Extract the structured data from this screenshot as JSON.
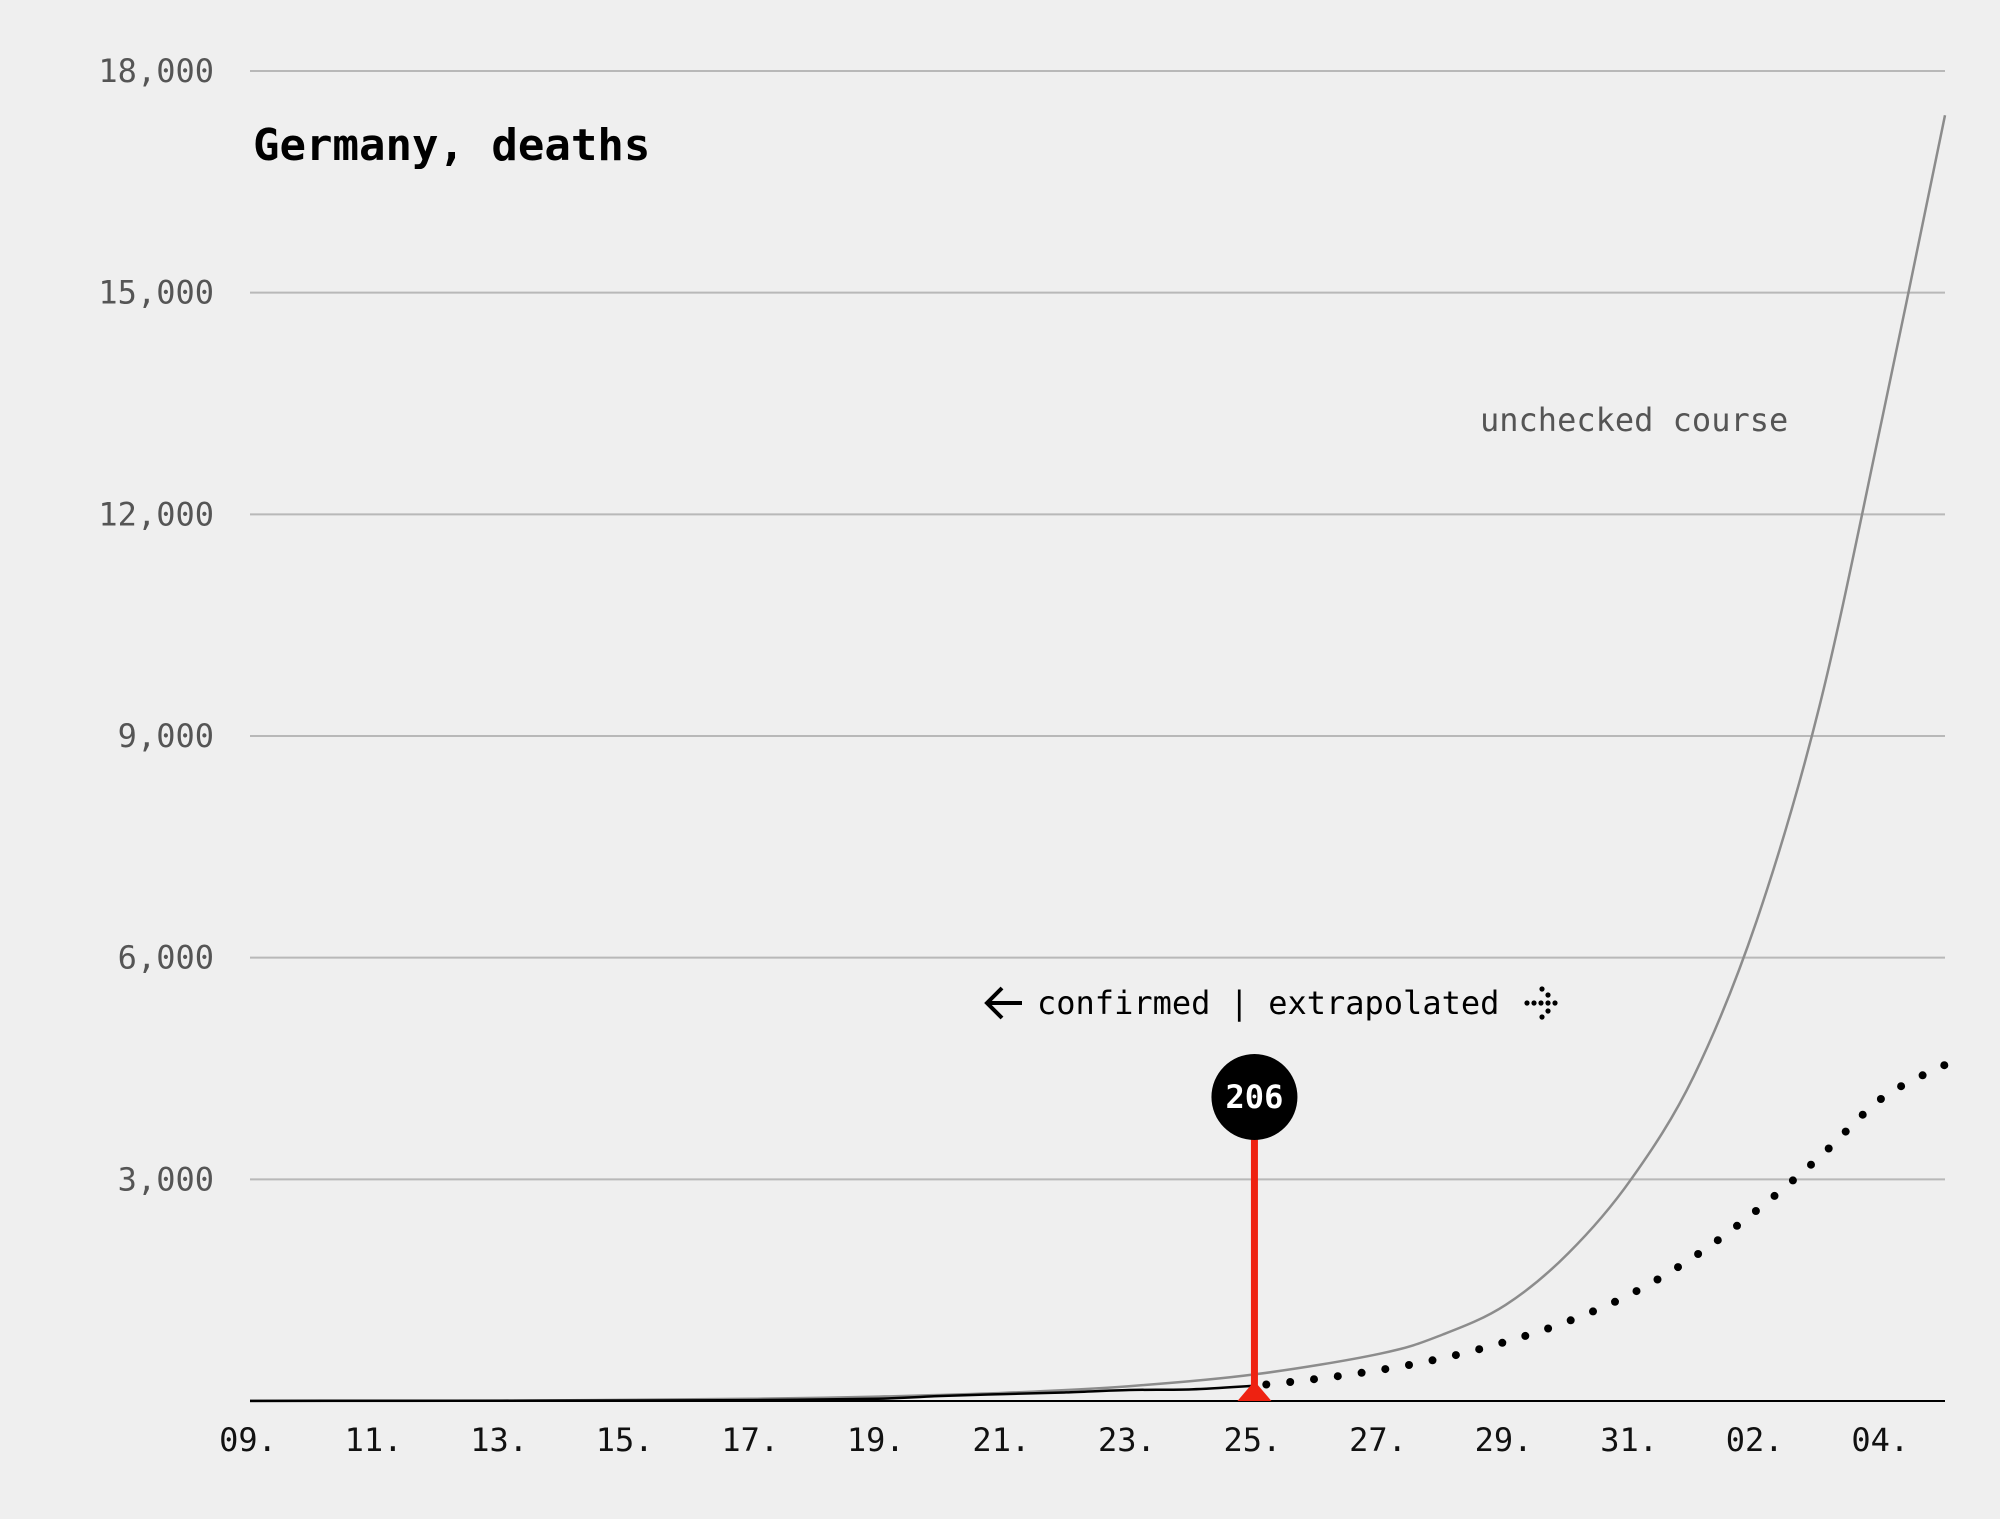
{
  "chart_data": {
    "type": "line",
    "title": "Germany, deaths",
    "xlabel": "",
    "ylabel": "",
    "ylim": [
      0,
      18000
    ],
    "y_ticks": [
      0,
      3000,
      6000,
      9000,
      12000,
      15000,
      18000
    ],
    "y_tick_labels": [
      "",
      "3,000",
      "6,000",
      "9,000",
      "12,000",
      "15,000",
      "18,000"
    ],
    "x_range_days": [
      0,
      27
    ],
    "x_ticks": [
      0,
      2,
      4,
      6,
      8,
      10,
      12,
      14,
      16,
      18,
      20,
      22,
      24,
      26
    ],
    "x_tick_labels": [
      "09.",
      "11.",
      "13.",
      "15.",
      "17.",
      "19.",
      "21.",
      "23.",
      "25.",
      "27.",
      "29.",
      "31.",
      "02.",
      "04."
    ],
    "grid": true,
    "series": [
      {
        "role": "confirmed",
        "style": "solid",
        "color": "#000000",
        "x": [
          0,
          2,
          4,
          6,
          8,
          10,
          11,
          12,
          13,
          14,
          15,
          16
        ],
        "y": [
          2,
          3,
          4,
          7,
          12,
          31,
          68,
          94,
          117,
          149,
          157,
          206
        ]
      },
      {
        "role": "extrapolated",
        "style": "dotted",
        "color": "#000000",
        "x": [
          16,
          17,
          18,
          19,
          20,
          21,
          22,
          23,
          24,
          25,
          26,
          27
        ],
        "y": [
          206,
          300,
          420,
          580,
          800,
          1080,
          1450,
          1950,
          2580,
          3300,
          4100,
          4550
        ]
      },
      {
        "role": "unchecked course",
        "style": "solid",
        "color": "#8c8c8c",
        "x": [
          0,
          4,
          8,
          10,
          12,
          14,
          16,
          18,
          19,
          20,
          21,
          22,
          23,
          24,
          25,
          26,
          27
        ],
        "y": [
          0,
          5,
          30,
          60,
          110,
          200,
          360,
          640,
          900,
          1300,
          2000,
          3000,
          4400,
          6500,
          9400,
          13300,
          17400
        ]
      }
    ],
    "annotations": {
      "series_label": "unchecked course",
      "divider_label": "confirmed | extrapolated",
      "marker_value": "206",
      "marker_x": 16,
      "marker_y": 206
    },
    "colors": {
      "background": "#efefef",
      "grid": "#b8b8b8",
      "marker": "#ee2211",
      "badge": "#000000"
    }
  }
}
